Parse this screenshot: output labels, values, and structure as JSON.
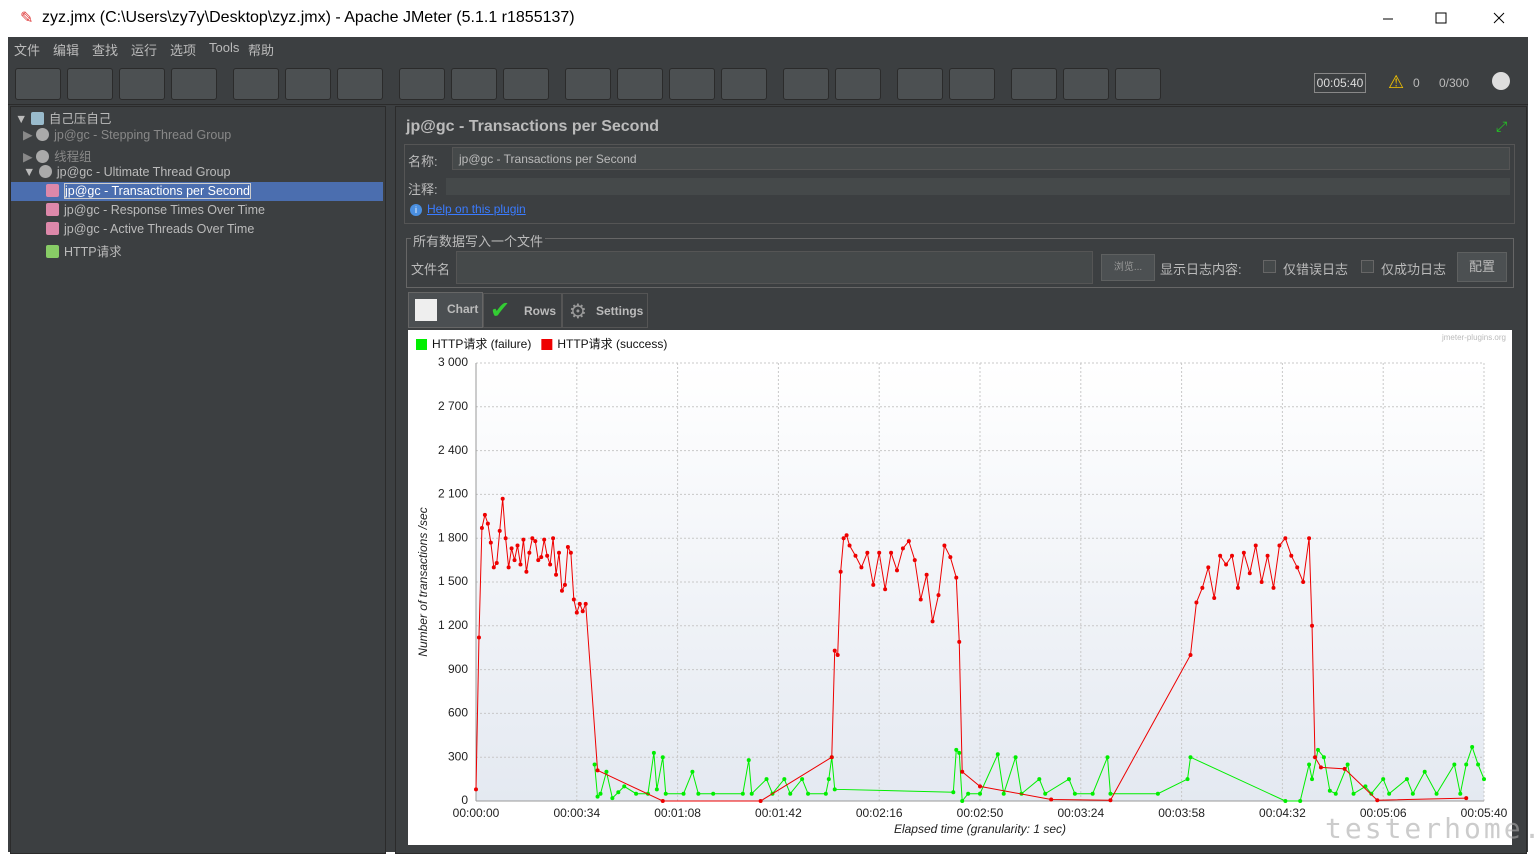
{
  "window": {
    "title": "zyz.jmx (C:\\Users\\zy7y\\Desktop\\zyz.jmx) - Apache JMeter (5.1.1 r1855137)"
  },
  "menu": [
    "文件",
    "编辑",
    "查找",
    "运行",
    "选项",
    "Tools",
    "帮助"
  ],
  "status": {
    "timer": "00:05:40",
    "warnings": "0",
    "threads": "0/300"
  },
  "tree": [
    "自己压自己",
    "jp@gc - Stepping Thread Group",
    "线程组",
    "jp@gc - Ultimate Thread Group",
    "jp@gc - Transactions per Second",
    "jp@gc - Response Times Over Time",
    "jp@gc - Active Threads Over Time",
    "HTTP请求"
  ],
  "panel": {
    "title": "jp@gc - Transactions per Second",
    "name_label": "名称:",
    "name_value": "jp@gc - Transactions per Second",
    "comment_label": "注释:",
    "help_link": "Help on this plugin",
    "file_group": "所有数据写入一个文件",
    "file_label": "文件名",
    "browse": "浏览...",
    "log_label": "显示日志内容:",
    "errors_only": "仅错误日志",
    "success_only": "仅成功日志",
    "configure": "配置",
    "tabs": [
      "Chart",
      "Rows",
      "Settings"
    ]
  },
  "watermark": "testerhome.com",
  "chart_data": {
    "type": "line",
    "credit": "jmeter-plugins.org",
    "x_label": "Elapsed time (granularity: 1 sec)",
    "y_label": "Number of transactions /sec",
    "xlim": [
      0,
      340
    ],
    "xticks": [
      {
        "value": 0,
        "label": "00:00:00"
      },
      {
        "value": 34,
        "label": "00:00:34"
      },
      {
        "value": 68,
        "label": "00:01:08"
      },
      {
        "value": 102,
        "label": "00:01:42"
      },
      {
        "value": 136,
        "label": "00:02:16"
      },
      {
        "value": 170,
        "label": "00:02:50"
      },
      {
        "value": 204,
        "label": "00:03:24"
      },
      {
        "value": 238,
        "label": "00:03:58"
      },
      {
        "value": 272,
        "label": "00:04:32"
      },
      {
        "value": 306,
        "label": "00:05:06"
      },
      {
        "value": 340,
        "label": "00:05:40"
      }
    ],
    "ylim": [
      0,
      3000
    ],
    "yticks": [
      0,
      300,
      600,
      900,
      {
        "value": 1200,
        "label": "1 200"
      },
      {
        "value": 1500,
        "label": "1 500"
      },
      {
        "value": 1800,
        "label": "1 800"
      },
      {
        "value": 2100,
        "label": "2 100"
      },
      {
        "value": 2400,
        "label": "2 400"
      },
      {
        "value": 2700,
        "label": "2 700"
      },
      {
        "value": 3000,
        "label": "3 000"
      }
    ],
    "grid": true,
    "series": [
      {
        "name": "HTTP请求 (failure)",
        "color": "#00ee00",
        "x": [
          40,
          41,
          42,
          44,
          46,
          48,
          50,
          54,
          58,
          60,
          61,
          63,
          64,
          70,
          73,
          75,
          80,
          90,
          92,
          93,
          98,
          100,
          104,
          106,
          110,
          112,
          118,
          119,
          120,
          121,
          161,
          162,
          163,
          164,
          166,
          170,
          176,
          178,
          182,
          184,
          190,
          192,
          200,
          202,
          208,
          213,
          214,
          230,
          240,
          241,
          273,
          278,
          281,
          282,
          284,
          286,
          288,
          290,
          294,
          296,
          300,
          302,
          306,
          308,
          314,
          316,
          320,
          324,
          330,
          332,
          334,
          336,
          338,
          340
        ],
        "values": [
          250,
          30,
          50,
          200,
          20,
          60,
          100,
          50,
          50,
          330,
          80,
          300,
          50,
          50,
          200,
          50,
          50,
          50,
          280,
          50,
          150,
          50,
          150,
          50,
          150,
          50,
          50,
          150,
          300,
          80,
          60,
          350,
          330,
          0,
          50,
          50,
          320,
          50,
          300,
          50,
          150,
          50,
          150,
          50,
          50,
          300,
          50,
          50,
          150,
          300,
          0,
          0,
          250,
          150,
          350,
          300,
          70,
          50,
          250,
          50,
          100,
          50,
          150,
          50,
          150,
          50,
          200,
          50,
          250,
          50,
          250,
          370,
          250,
          150
        ]
      },
      {
        "name": "HTTP请求 (success)",
        "color": "#ee0000",
        "x": [
          0,
          1,
          2,
          3,
          4,
          5,
          6,
          7,
          8,
          9,
          10,
          11,
          12,
          13,
          14,
          15,
          16,
          17,
          18,
          19,
          20,
          21,
          22,
          23,
          24,
          25,
          26,
          27,
          28,
          29,
          30,
          31,
          32,
          33,
          34,
          35,
          36,
          37,
          41,
          63,
          96,
          120,
          121,
          122,
          123,
          124,
          125,
          126,
          128,
          130,
          132,
          134,
          136,
          138,
          140,
          142,
          144,
          146,
          148,
          150,
          152,
          154,
          156,
          158,
          160,
          162,
          163,
          164,
          170,
          194,
          214,
          241,
          243,
          245,
          247,
          249,
          251,
          253,
          255,
          257,
          259,
          261,
          263,
          265,
          267,
          269,
          271,
          273,
          275,
          277,
          279,
          281,
          282,
          283,
          285,
          293,
          304,
          334
        ],
        "values": [
          80,
          1120,
          1870,
          1960,
          1900,
          1770,
          1600,
          1630,
          1850,
          2070,
          1800,
          1600,
          1730,
          1650,
          1750,
          1620,
          1790,
          1570,
          1700,
          1800,
          1780,
          1650,
          1670,
          1790,
          1680,
          1620,
          1800,
          1550,
          1700,
          1440,
          1480,
          1740,
          1700,
          1380,
          1290,
          1350,
          1300,
          1350,
          210,
          0,
          0,
          300,
          1030,
          1000,
          1570,
          1800,
          1820,
          1750,
          1680,
          1600,
          1700,
          1480,
          1700,
          1450,
          1700,
          1580,
          1730,
          1780,
          1650,
          1380,
          1550,
          1230,
          1410,
          1750,
          1670,
          1530,
          1090,
          200,
          100,
          10,
          5,
          1000,
          1360,
          1460,
          1600,
          1390,
          1680,
          1620,
          1680,
          1460,
          1700,
          1560,
          1750,
          1500,
          1680,
          1460,
          1750,
          1800,
          1680,
          1600,
          1500,
          1800,
          1200,
          300,
          230,
          220,
          5,
          20
        ]
      }
    ]
  }
}
